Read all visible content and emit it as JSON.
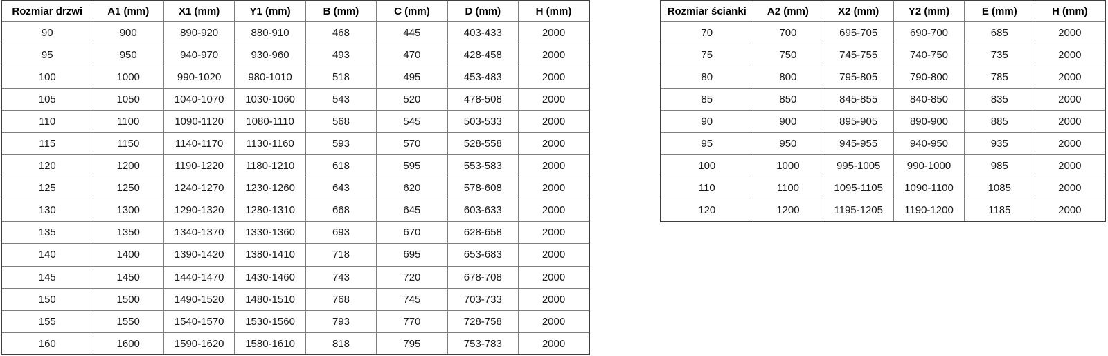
{
  "page": {
    "description": "Two shower enclosure dimension tables (door sizes and wall panel sizes)",
    "language": "pl"
  },
  "colors": {
    "background": "#ffffff",
    "text": "#1a1a1a",
    "header_text": "#000000",
    "grid_line": "#7f7f7f",
    "outer_border": "#3f3f3f"
  },
  "left_table": {
    "name": "door-sizes",
    "headers": [
      "Rozmiar drzwi",
      "A1 (mm)",
      "X1 (mm)",
      "Y1 (mm)",
      "B (mm)",
      "C (mm)",
      "D (mm)",
      "H (mm)"
    ],
    "rows": [
      [
        "90",
        "900",
        "890-920",
        "880-910",
        "468",
        "445",
        "403-433",
        "2000"
      ],
      [
        "95",
        "950",
        "940-970",
        "930-960",
        "493",
        "470",
        "428-458",
        "2000"
      ],
      [
        "100",
        "1000",
        "990-1020",
        "980-1010",
        "518",
        "495",
        "453-483",
        "2000"
      ],
      [
        "105",
        "1050",
        "1040-1070",
        "1030-1060",
        "543",
        "520",
        "478-508",
        "2000"
      ],
      [
        "110",
        "1100",
        "1090-1120",
        "1080-1110",
        "568",
        "545",
        "503-533",
        "2000"
      ],
      [
        "115",
        "1150",
        "1140-1170",
        "1130-1160",
        "593",
        "570",
        "528-558",
        "2000"
      ],
      [
        "120",
        "1200",
        "1190-1220",
        "1180-1210",
        "618",
        "595",
        "553-583",
        "2000"
      ],
      [
        "125",
        "1250",
        "1240-1270",
        "1230-1260",
        "643",
        "620",
        "578-608",
        "2000"
      ],
      [
        "130",
        "1300",
        "1290-1320",
        "1280-1310",
        "668",
        "645",
        "603-633",
        "2000"
      ],
      [
        "135",
        "1350",
        "1340-1370",
        "1330-1360",
        "693",
        "670",
        "628-658",
        "2000"
      ],
      [
        "140",
        "1400",
        "1390-1420",
        "1380-1410",
        "718",
        "695",
        "653-683",
        "2000"
      ],
      [
        "145",
        "1450",
        "1440-1470",
        "1430-1460",
        "743",
        "720",
        "678-708",
        "2000"
      ],
      [
        "150",
        "1500",
        "1490-1520",
        "1480-1510",
        "768",
        "745",
        "703-733",
        "2000"
      ],
      [
        "155",
        "1550",
        "1540-1570",
        "1530-1560",
        "793",
        "770",
        "728-758",
        "2000"
      ],
      [
        "160",
        "1600",
        "1590-1620",
        "1580-1610",
        "818",
        "795",
        "753-783",
        "2000"
      ]
    ]
  },
  "right_table": {
    "name": "wall-panel-sizes",
    "headers": [
      "Rozmiar ścianki",
      "A2 (mm)",
      "X2 (mm)",
      "Y2 (mm)",
      "E (mm)",
      "H (mm)"
    ],
    "rows": [
      [
        "70",
        "700",
        "695-705",
        "690-700",
        "685",
        "2000"
      ],
      [
        "75",
        "750",
        "745-755",
        "740-750",
        "735",
        "2000"
      ],
      [
        "80",
        "800",
        "795-805",
        "790-800",
        "785",
        "2000"
      ],
      [
        "85",
        "850",
        "845-855",
        "840-850",
        "835",
        "2000"
      ],
      [
        "90",
        "900",
        "895-905",
        "890-900",
        "885",
        "2000"
      ],
      [
        "95",
        "950",
        "945-955",
        "940-950",
        "935",
        "2000"
      ],
      [
        "100",
        "1000",
        "995-1005",
        "990-1000",
        "985",
        "2000"
      ],
      [
        "110",
        "1100",
        "1095-1105",
        "1090-1100",
        "1085",
        "2000"
      ],
      [
        "120",
        "1200",
        "1195-1205",
        "1190-1200",
        "1185",
        "2000"
      ]
    ]
  }
}
